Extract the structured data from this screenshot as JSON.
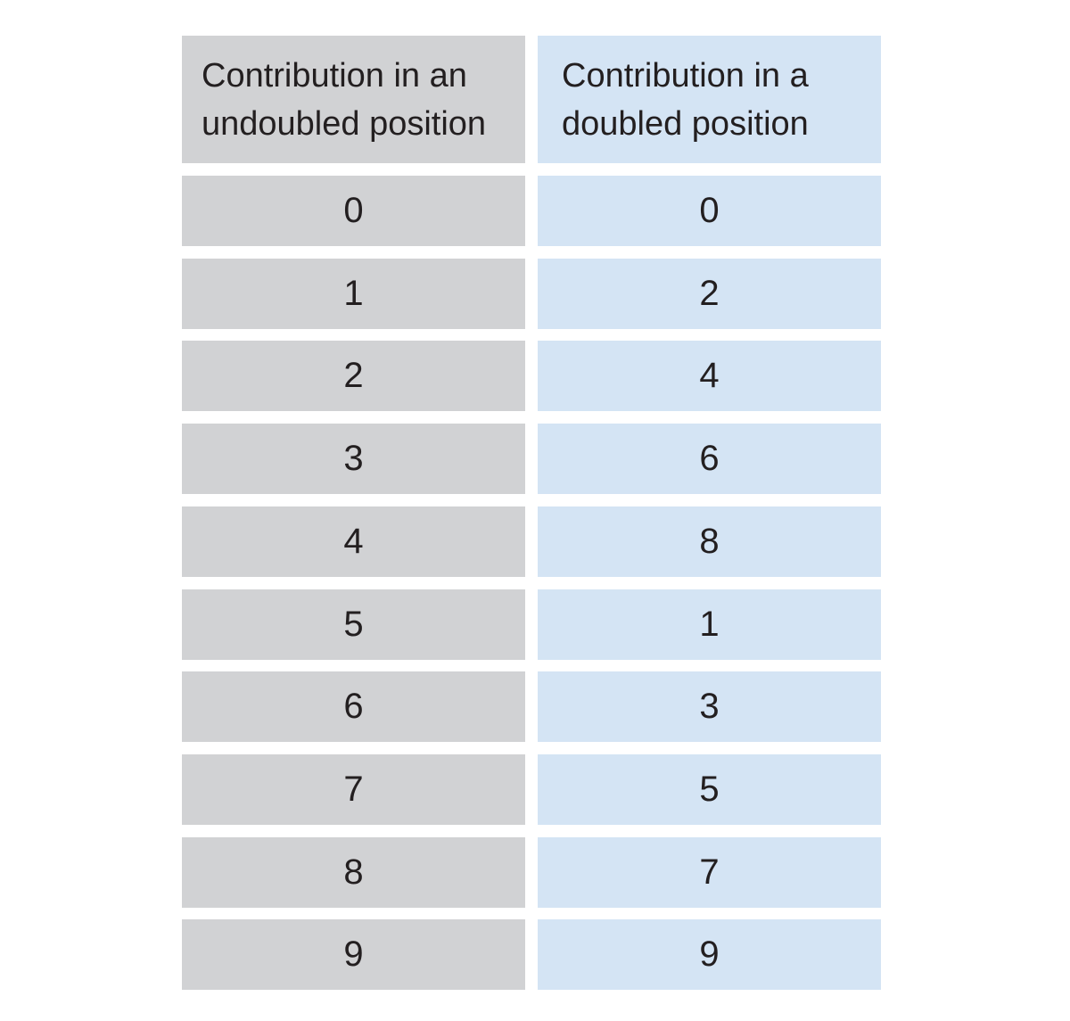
{
  "table": {
    "header": [
      "Contribution in an undoubled position",
      "Contribution in a doubled position"
    ],
    "rows": [
      [
        "0",
        "0"
      ],
      [
        "1",
        "2"
      ],
      [
        "2",
        "4"
      ],
      [
        "3",
        "6"
      ],
      [
        "4",
        "8"
      ],
      [
        "5",
        "1"
      ],
      [
        "6",
        "3"
      ],
      [
        "7",
        "5"
      ],
      [
        "8",
        "7"
      ],
      [
        "9",
        "9"
      ]
    ]
  }
}
